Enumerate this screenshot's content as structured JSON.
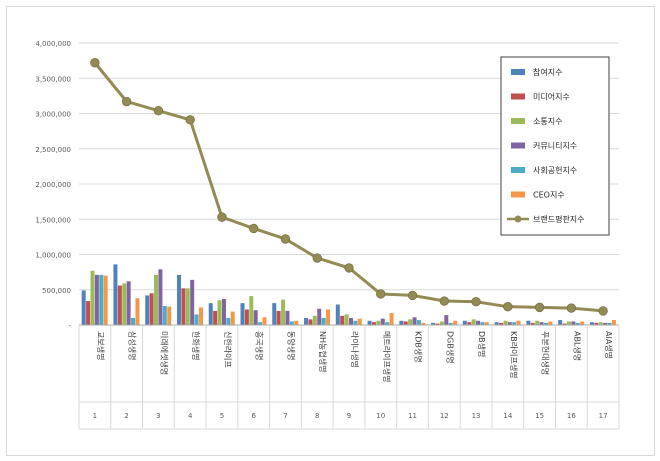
{
  "chart_data": {
    "type": "bar",
    "categories": [
      "교보생명",
      "삼성생명",
      "미래에셋생명",
      "한화생명",
      "신한라이프",
      "흥국생명",
      "동양생명",
      "NH농협생명",
      "라이나생명",
      "메트라이프생명",
      "KDB생명",
      "DGB생명",
      "DB생명",
      "KB라이프생명",
      "푸본현대생명",
      "ABL생명",
      "AIA생명"
    ],
    "ranks": [
      "1",
      "2",
      "3",
      "4",
      "5",
      "6",
      "7",
      "8",
      "9",
      "10",
      "11",
      "12",
      "13",
      "14",
      "15",
      "16",
      "17"
    ],
    "ylim": [
      0,
      4000000
    ],
    "yticks": [
      0,
      500000,
      1000000,
      1500000,
      2000000,
      2500000,
      3000000,
      3500000,
      4000000
    ],
    "ytick_labels": [
      "-",
      "500,000",
      "1,000,000",
      "1,500,000",
      "2,000,000",
      "2,500,000",
      "3,000,000",
      "3,500,000",
      "4,000,000"
    ],
    "grid": true,
    "legend_position": "right",
    "series": [
      {
        "name": "참여지수",
        "kind": "bar",
        "color": "#4f81bd",
        "values": [
          490000,
          860000,
          420000,
          710000,
          310000,
          310000,
          310000,
          100000,
          290000,
          60000,
          60000,
          30000,
          60000,
          40000,
          60000,
          70000,
          40000
        ]
      },
      {
        "name": "미디어지수",
        "kind": "bar",
        "color": "#c0504d",
        "values": [
          340000,
          560000,
          450000,
          520000,
          200000,
          220000,
          200000,
          80000,
          130000,
          40000,
          50000,
          20000,
          40000,
          30000,
          30000,
          20000,
          30000
        ]
      },
      {
        "name": "소통지수",
        "kind": "bar",
        "color": "#9bbb59",
        "values": [
          770000,
          590000,
          710000,
          520000,
          350000,
          410000,
          360000,
          130000,
          150000,
          60000,
          80000,
          50000,
          80000,
          60000,
          60000,
          50000,
          40000
        ]
      },
      {
        "name": "커뮤니티지수",
        "kind": "bar",
        "color": "#8064a2",
        "values": [
          710000,
          620000,
          790000,
          640000,
          370000,
          210000,
          200000,
          230000,
          100000,
          90000,
          110000,
          140000,
          60000,
          40000,
          40000,
          50000,
          30000
        ]
      },
      {
        "name": "사회공헌지수",
        "kind": "bar",
        "color": "#4bacc6",
        "values": [
          710000,
          100000,
          270000,
          150000,
          100000,
          40000,
          50000,
          100000,
          60000,
          40000,
          70000,
          30000,
          40000,
          40000,
          30000,
          30000,
          30000
        ]
      },
      {
        "name": "CEO지수",
        "kind": "bar",
        "color": "#f79646",
        "values": [
          700000,
          380000,
          260000,
          250000,
          190000,
          110000,
          60000,
          220000,
          90000,
          170000,
          30000,
          60000,
          40000,
          60000,
          50000,
          50000,
          70000
        ]
      },
      {
        "name": "브랜드평판지수",
        "kind": "line",
        "color": "#948a54",
        "values": [
          3720000,
          3170000,
          3040000,
          2910000,
          1530000,
          1370000,
          1220000,
          950000,
          810000,
          440000,
          420000,
          340000,
          330000,
          260000,
          250000,
          240000,
          200000
        ]
      }
    ]
  }
}
